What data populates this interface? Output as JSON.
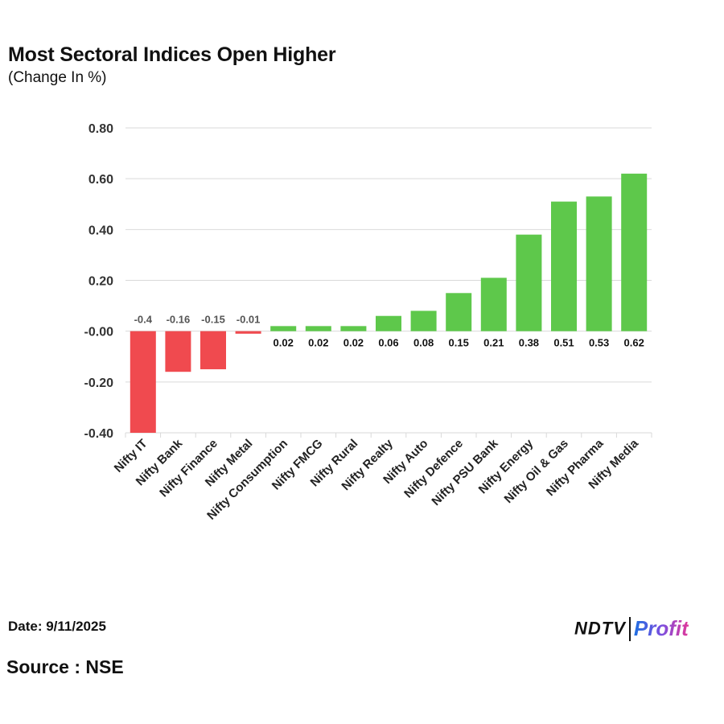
{
  "header": {
    "title": "Most Sectoral Indices Open Higher",
    "subtitle": "(Change In %)"
  },
  "footer": {
    "date": "Date: 9/11/2025",
    "source": "Source : NSE"
  },
  "branding": {
    "logo_part1": "NDTV",
    "logo_part2": "Profit"
  },
  "colors": {
    "negative": "#f04a4f",
    "positive": "#5ec84b",
    "grid": "#d9d9d9"
  },
  "chart_data": {
    "type": "bar",
    "title": "Most Sectoral Indices Open Higher",
    "subtitle": "(Change In %)",
    "xlabel": "",
    "ylabel": "",
    "ylim": [
      -0.4,
      0.8
    ],
    "yticks": [
      0.8,
      0.6,
      0.4,
      0.2,
      0.0,
      -0.2,
      -0.4
    ],
    "ytick_labels": [
      "0.80",
      "0.60",
      "0.40",
      "0.20",
      "-0.00",
      "-0.20",
      "-0.40"
    ],
    "grid": true,
    "legend": "none",
    "categories": [
      "Nifty IT",
      "Nifty Bank",
      "Nifty Finance",
      "Nifty Metal",
      "Nifty Consumption",
      "Nifty FMCG",
      "Nifty Rural",
      "Nifty Realty",
      "Nifty Auto",
      "Nifty Defence",
      "Nifty PSU Bank",
      "Nifty Energy",
      "Nifty Oil & Gas",
      "Nifty Pharma",
      "Nifty Media"
    ],
    "values": [
      -0.4,
      -0.16,
      -0.15,
      -0.01,
      0.02,
      0.02,
      0.02,
      0.06,
      0.08,
      0.15,
      0.21,
      0.38,
      0.51,
      0.53,
      0.62
    ],
    "data_labels": [
      "-0.4",
      "-0.16",
      "-0.15",
      "-0.01",
      "0.02",
      "0.02",
      "0.02",
      "0.06",
      "0.08",
      "0.15",
      "0.21",
      "0.38",
      "0.51",
      "0.53",
      "0.62"
    ]
  }
}
